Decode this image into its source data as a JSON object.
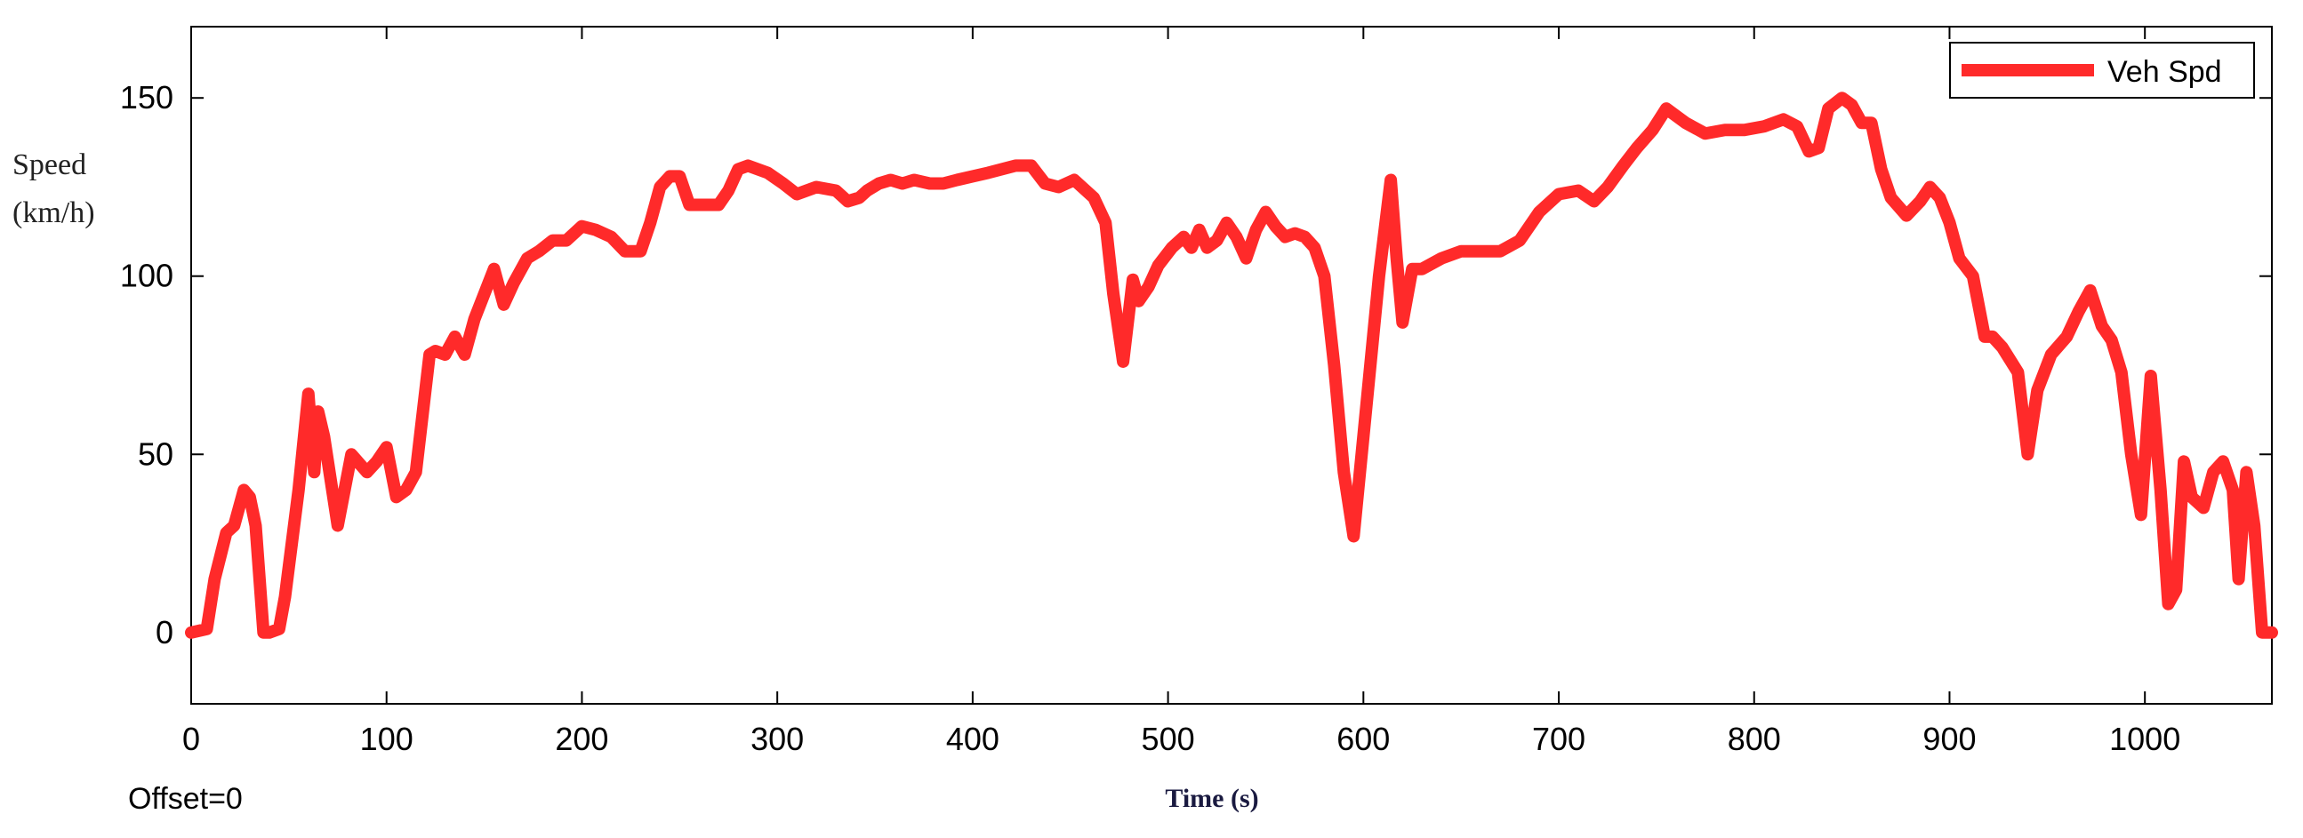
{
  "chart_data": {
    "type": "line",
    "title": "",
    "xlabel": "Time (s)",
    "ylabel_lines": [
      "Speed",
      "(km/h)"
    ],
    "xlim": [
      0,
      1065
    ],
    "ylim": [
      -20,
      170
    ],
    "x_ticks": [
      0,
      100,
      200,
      300,
      400,
      500,
      600,
      700,
      800,
      900,
      1000
    ],
    "y_ticks": [
      0,
      50,
      100,
      150
    ],
    "grid": false,
    "legend_position": "top-right",
    "annotation": "Offset=0",
    "series": [
      {
        "name": "Veh Spd",
        "color": "#ff2a2a",
        "x": [
          0,
          8,
          12,
          18,
          22,
          27,
          30,
          33,
          37,
          40,
          45,
          48,
          55,
          60,
          63,
          65,
          68,
          75,
          82,
          90,
          95,
          100,
          105,
          110,
          115,
          122,
          125,
          130,
          135,
          140,
          145,
          155,
          160,
          165,
          172,
          178,
          185,
          192,
          200,
          207,
          215,
          222,
          230,
          235,
          240,
          245,
          250,
          255,
          260,
          270,
          275,
          280,
          285,
          295,
          303,
          310,
          320,
          330,
          336,
          342,
          346,
          352,
          358,
          364,
          370,
          378,
          385,
          392,
          400,
          408,
          415,
          422,
          430,
          437,
          444,
          452,
          458,
          462,
          468,
          472,
          477,
          482,
          485,
          490,
          495,
          502,
          508,
          512,
          516,
          520,
          525,
          530,
          535,
          540,
          545,
          550,
          555,
          560,
          565,
          570,
          575,
          580,
          585,
          590,
          595,
          600,
          608,
          614,
          617,
          620,
          625,
          630,
          640,
          650,
          660,
          670,
          680,
          690,
          700,
          710,
          718,
          725,
          733,
          740,
          748,
          755,
          765,
          775,
          785,
          795,
          805,
          815,
          822,
          828,
          833,
          838,
          845,
          850,
          855,
          860,
          865,
          870,
          878,
          885,
          890,
          895,
          900,
          905,
          912,
          918,
          922,
          927,
          935,
          940,
          945,
          952,
          960,
          966,
          972,
          978,
          983,
          988,
          993,
          998,
          1003,
          1008,
          1012,
          1016,
          1020,
          1024,
          1030,
          1035,
          1040,
          1045,
          1048,
          1052,
          1056,
          1060,
          1065
        ],
        "values": [
          0,
          1,
          15,
          28,
          30,
          40,
          38,
          30,
          0,
          0,
          1,
          10,
          40,
          67,
          45,
          62,
          55,
          30,
          50,
          45,
          48,
          52,
          38,
          40,
          45,
          78,
          79,
          78,
          83,
          78,
          88,
          102,
          92,
          98,
          105,
          107,
          110,
          110,
          114,
          113,
          111,
          107,
          107,
          115,
          125,
          128,
          128,
          120,
          120,
          120,
          124,
          130,
          131,
          129,
          126,
          123,
          125,
          124,
          121,
          122,
          124,
          126,
          127,
          126,
          127,
          126,
          126,
          127,
          128,
          129,
          130,
          131,
          131,
          126,
          125,
          127,
          124,
          122,
          115,
          95,
          76,
          99,
          93,
          97,
          103,
          108,
          111,
          108,
          113,
          108,
          110,
          115,
          111,
          105,
          113,
          118,
          114,
          111,
          112,
          111,
          108,
          100,
          75,
          45,
          27,
          55,
          100,
          127,
          105,
          87,
          102,
          102,
          105,
          107,
          107,
          107,
          110,
          118,
          123,
          124,
          121,
          125,
          131,
          136,
          141,
          147,
          143,
          140,
          141,
          141,
          142,
          144,
          142,
          135,
          136,
          147,
          150,
          148,
          143,
          143,
          130,
          122,
          117,
          121,
          125,
          122,
          115,
          105,
          100,
          83,
          83,
          80,
          73,
          50,
          68,
          78,
          83,
          90,
          96,
          86,
          82,
          73,
          50,
          33,
          72,
          40,
          8,
          12,
          48,
          38,
          35,
          45,
          48,
          40,
          15,
          45,
          30,
          0,
          0
        ]
      }
    ]
  }
}
